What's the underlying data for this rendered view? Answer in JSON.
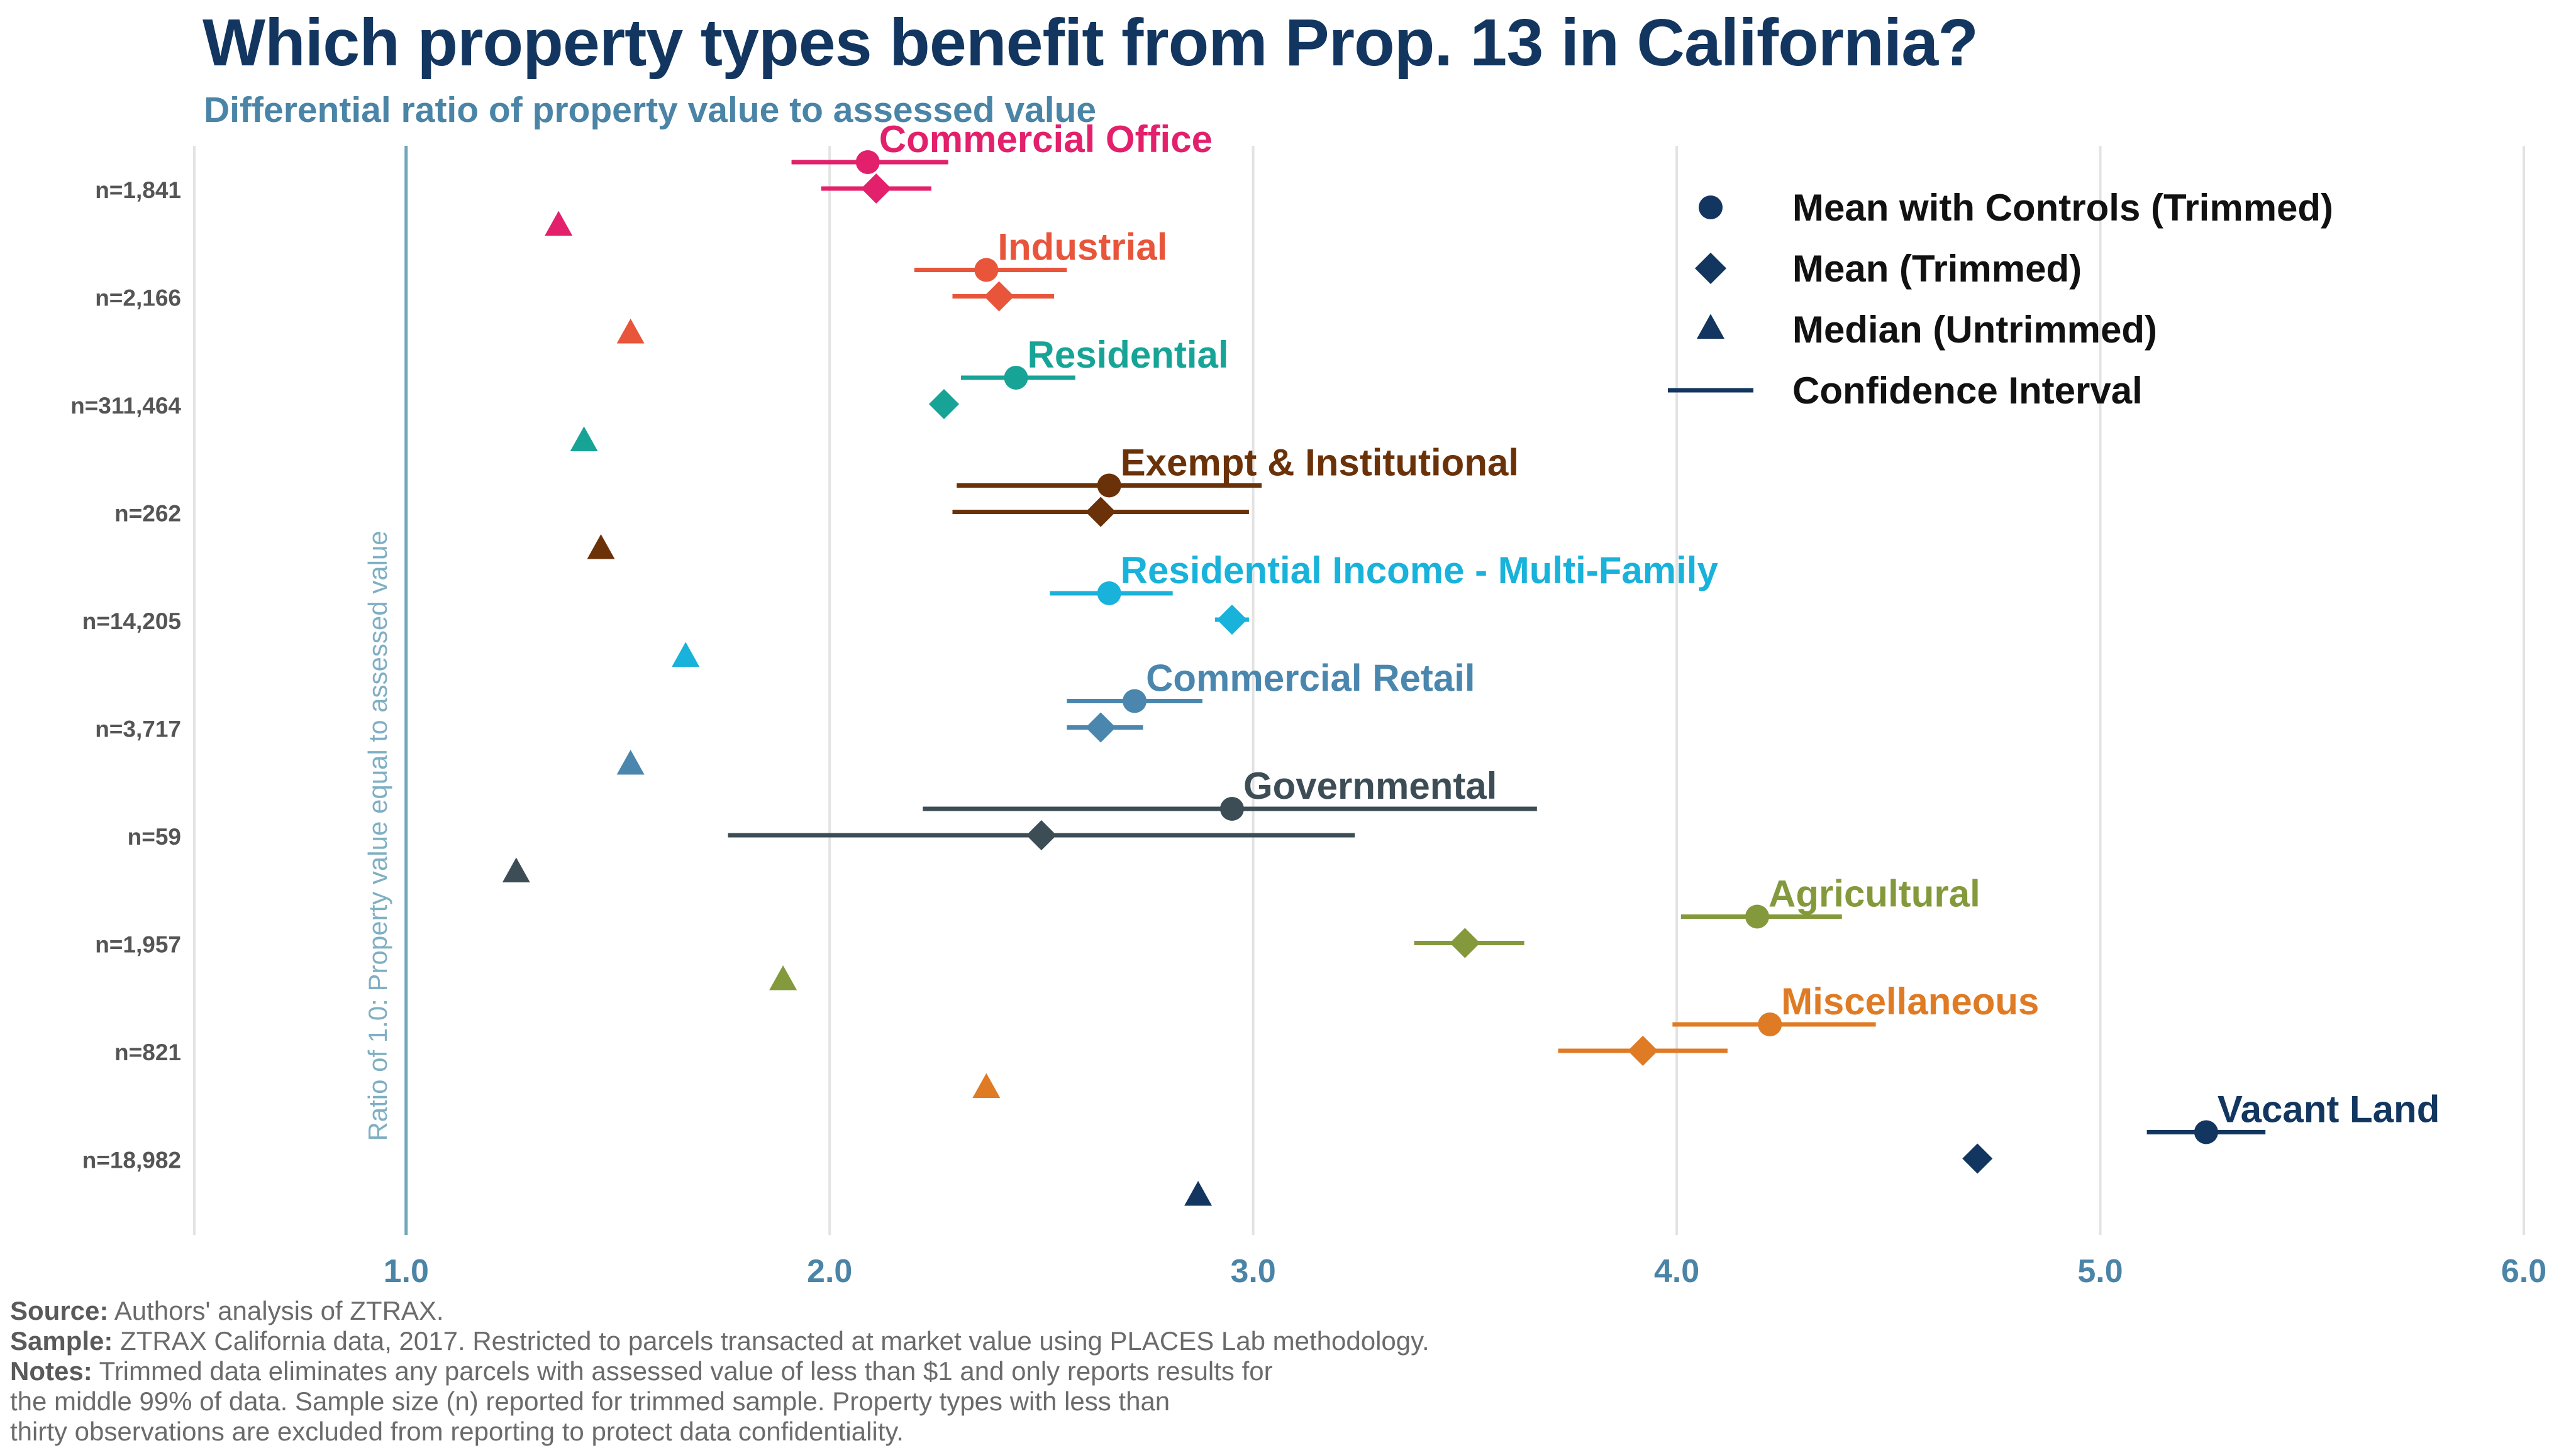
{
  "title": "Which property types benefit from Prop. 13 in California?",
  "subtitle": "Differential ratio of property value to assessed value",
  "colors": {
    "Commercial Office": "#e3206b",
    "Industrial": "#e8553a",
    "Residential": "#17a497",
    "Exempt & Institutional": "#6b3209",
    "Residential Income - Multi-Family": "#18b2da",
    "Commercial Retail": "#4a86ad",
    "Governmental": "#3d4d56",
    "Agricultural": "#84993b",
    "Miscellaneous": "#df7b24",
    "Vacant Land": "#12365f",
    "reference_line": "#6fa8b8",
    "legend": "#12365f",
    "grid": "#e3e3e3",
    "axis_text": "#4a84a6"
  },
  "chart_data": {
    "type": "scatter",
    "xlim": [
      0.5,
      6.0
    ],
    "x_ticks": [
      1.0,
      2.0,
      3.0,
      4.0,
      5.0,
      6.0
    ],
    "x_tick_labels": [
      "1.0",
      "2.0",
      "3.0",
      "4.0",
      "5.0",
      "6.0"
    ],
    "grid": true,
    "legend_position": "top-right",
    "reference_line": {
      "x": 1.0,
      "label": "Ratio of 1.0: Property value equal to assessed value"
    },
    "legend": [
      {
        "marker": "circle",
        "label": "Mean with Controls (Trimmed)"
      },
      {
        "marker": "diamond",
        "label": "Mean (Trimmed)"
      },
      {
        "marker": "triangle",
        "label": "Median (Untrimmed)"
      },
      {
        "marker": "line",
        "label": "Confidence Interval"
      }
    ],
    "categories": [
      {
        "name": "Commercial Office",
        "n": "n=1,841",
        "mean_controls": 2.09,
        "mean_controls_ci": [
          1.91,
          2.28
        ],
        "mean": 2.11,
        "mean_ci": [
          1.98,
          2.24
        ],
        "median": 1.36
      },
      {
        "name": "Industrial",
        "n": "n=2,166",
        "mean_controls": 2.37,
        "mean_controls_ci": [
          2.2,
          2.56
        ],
        "mean": 2.4,
        "mean_ci": [
          2.29,
          2.53
        ],
        "median": 1.53
      },
      {
        "name": "Residential",
        "n": "n=311,464",
        "mean_controls": 2.44,
        "mean_controls_ci": [
          2.31,
          2.58
        ],
        "mean": 2.27,
        "mean_ci": null,
        "median": 1.42
      },
      {
        "name": "Exempt & Institutional",
        "n": "n=262",
        "mean_controls": 2.66,
        "mean_controls_ci": [
          2.3,
          3.02
        ],
        "mean": 2.64,
        "mean_ci": [
          2.29,
          2.99
        ],
        "median": 1.46
      },
      {
        "name": "Residential Income - Multi-Family",
        "n": "n=14,205",
        "mean_controls": 2.66,
        "mean_controls_ci": [
          2.52,
          2.81
        ],
        "mean": 2.95,
        "mean_ci": [
          2.91,
          2.99
        ],
        "median": 1.66
      },
      {
        "name": "Commercial Retail",
        "n": "n=3,717",
        "mean_controls": 2.72,
        "mean_controls_ci": [
          2.56,
          2.88
        ],
        "mean": 2.64,
        "mean_ci": [
          2.56,
          2.74
        ],
        "median": 1.53
      },
      {
        "name": "Governmental",
        "n": "n=59",
        "mean_controls": 2.95,
        "mean_controls_ci": [
          2.22,
          3.67
        ],
        "mean": 2.5,
        "mean_ci": [
          1.76,
          3.24
        ],
        "median": 1.26
      },
      {
        "name": "Agricultural",
        "n": "n=1,957",
        "mean_controls": 4.19,
        "mean_controls_ci": [
          4.01,
          4.39
        ],
        "mean": 3.5,
        "mean_ci": [
          3.38,
          3.64
        ],
        "median": 1.89
      },
      {
        "name": "Miscellaneous",
        "n": "n=821",
        "mean_controls": 4.22,
        "mean_controls_ci": [
          3.99,
          4.47
        ],
        "mean": 3.92,
        "mean_ci": [
          3.72,
          4.12
        ],
        "median": 2.37
      },
      {
        "name": "Vacant Land",
        "n": "n=18,982",
        "mean_controls": 5.25,
        "mean_controls_ci": [
          5.11,
          5.39
        ],
        "mean": 4.71,
        "mean_ci": null,
        "median": 2.87
      }
    ]
  },
  "footnotes": [
    {
      "key": "Source:",
      "text": " Authors' analysis of ZTRAX."
    },
    {
      "key": "Sample:",
      "text": " ZTRAX California data, 2017. Restricted to parcels transacted at market value using PLACES Lab methodology."
    },
    {
      "key": "Notes:",
      "text": " Trimmed data eliminates any parcels with assessed value of less than $1 and only reports results for"
    },
    {
      "key": "",
      "text": "the middle 99% of data. Sample size (n) reported for trimmed sample. Property types with less than"
    },
    {
      "key": "",
      "text": "thirty observations are excluded from reporting to protect data confidentiality."
    }
  ]
}
